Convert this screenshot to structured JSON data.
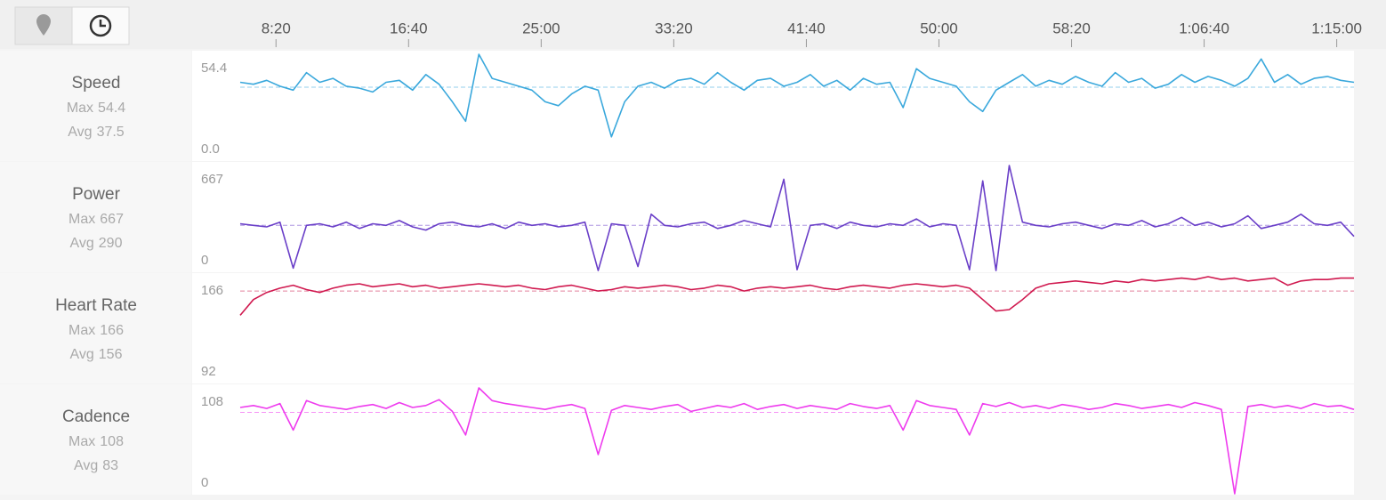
{
  "time_axis": {
    "x": [
      365,
      415,
      465,
      515,
      565,
      615,
      665,
      715,
      765,
      815,
      865,
      915,
      965,
      1015,
      1065,
      1115,
      1165,
      1215,
      1265,
      1315,
      1365,
      1415,
      1465,
      1515,
      1565,
      1615,
      1665,
      1715,
      1765,
      1815,
      1865,
      1915,
      1965,
      2015,
      2065,
      2115,
      2165,
      2215,
      2265,
      2315,
      2365,
      2415,
      2465,
      2515,
      2565,
      2615,
      2665,
      2715,
      2765,
      2815,
      2865,
      2915,
      2965,
      3015,
      3065,
      3115,
      3165,
      3215,
      3265,
      3315,
      3365,
      3415,
      3465,
      3515,
      3565,
      3615,
      3665,
      3715,
      3765,
      3815,
      3865,
      3915,
      3965,
      4015,
      4065,
      4115,
      4165,
      4215,
      4265,
      4315,
      4365,
      4415,
      4465,
      4515,
      4565
    ],
    "xlim": [
      365,
      4565
    ],
    "xticks": [
      {
        "value": 500,
        "label": "8:20"
      },
      {
        "value": 1000,
        "label": "16:40"
      },
      {
        "value": 1500,
        "label": "25:00"
      },
      {
        "value": 2000,
        "label": "33:20"
      },
      {
        "value": 2500,
        "label": "41:40"
      },
      {
        "value": 3000,
        "label": "50:00"
      },
      {
        "value": 3500,
        "label": "58:20"
      },
      {
        "value": 4000,
        "label": "1:06:40"
      },
      {
        "value": 4500,
        "label": "1:15:00"
      }
    ]
  },
  "chart_data": [
    {
      "type": "line",
      "title": "Speed",
      "color": "#3aa8dc",
      "ylim": [
        0,
        54.4
      ],
      "yticks": [
        {
          "value": 0,
          "label": "0.0"
        },
        54.4
      ],
      "stats": [
        {
          "label": "Max",
          "value": 54.4
        },
        {
          "label": "Avg",
          "value": 37.5
        }
      ],
      "values": [
        40,
        39,
        41,
        38,
        36,
        45,
        40,
        42,
        38,
        37,
        35,
        40,
        41,
        36,
        44,
        39,
        30,
        20,
        54.4,
        42,
        40,
        38,
        36,
        30,
        28,
        34,
        38,
        36,
        12,
        30,
        38,
        40,
        37,
        41,
        42,
        39,
        45,
        40,
        36,
        41,
        42,
        38,
        40,
        44,
        38,
        41,
        36,
        42,
        39,
        40,
        27,
        47,
        42,
        40,
        38,
        30,
        25,
        36,
        40,
        44,
        38,
        41,
        39,
        43,
        40,
        38,
        45,
        40,
        42,
        37,
        39,
        44,
        40,
        43,
        41,
        38,
        42,
        52,
        40,
        44,
        39,
        42,
        43,
        41,
        40
      ]
    },
    {
      "type": "line",
      "title": "Power",
      "color": "#6a3fc8",
      "ylim": [
        0,
        667
      ],
      "yticks": [
        0,
        667
      ],
      "stats": [
        {
          "label": "Max",
          "value": 667
        },
        {
          "label": "Avg",
          "value": 290
        }
      ],
      "values": [
        300,
        290,
        280,
        310,
        20,
        290,
        300,
        280,
        310,
        270,
        300,
        290,
        320,
        280,
        260,
        300,
        310,
        290,
        280,
        300,
        270,
        310,
        290,
        300,
        280,
        290,
        310,
        5,
        300,
        290,
        30,
        360,
        290,
        280,
        300,
        310,
        270,
        290,
        320,
        300,
        280,
        580,
        10,
        290,
        300,
        270,
        310,
        290,
        280,
        300,
        290,
        330,
        280,
        300,
        290,
        10,
        570,
        5,
        667,
        310,
        290,
        280,
        300,
        310,
        290,
        270,
        300,
        290,
        320,
        280,
        300,
        340,
        290,
        310,
        280,
        300,
        350,
        270,
        290,
        310,
        360,
        300,
        290,
        310,
        220
      ]
    },
    {
      "type": "line",
      "title": "Heart Rate",
      "color": "#d0194f",
      "ylim": [
        92,
        166
      ],
      "yticks": [
        92,
        166
      ],
      "stats": [
        {
          "label": "Max",
          "value": 166
        },
        {
          "label": "Avg",
          "value": 156
        }
      ],
      "values": [
        139,
        150,
        155,
        158,
        160,
        157,
        155,
        158,
        160,
        161,
        159,
        160,
        161,
        159,
        160,
        158,
        159,
        160,
        161,
        160,
        159,
        160,
        158,
        157,
        159,
        160,
        158,
        156,
        157,
        159,
        158,
        159,
        160,
        159,
        157,
        158,
        160,
        159,
        156,
        158,
        159,
        158,
        159,
        160,
        158,
        157,
        159,
        160,
        159,
        158,
        160,
        161,
        160,
        159,
        160,
        158,
        150,
        142,
        143,
        150,
        158,
        161,
        162,
        163,
        162,
        161,
        163,
        162,
        164,
        163,
        164,
        165,
        164,
        166,
        164,
        165,
        163,
        164,
        165,
        160,
        163,
        164,
        164,
        165,
        165
      ]
    },
    {
      "type": "line",
      "title": "Cadence",
      "color": "#ee3bee",
      "ylim": [
        0,
        108
      ],
      "yticks": [
        0,
        108
      ],
      "stats": [
        {
          "label": "Max",
          "value": 108
        },
        {
          "label": "Avg",
          "value": 83
        }
      ],
      "values": [
        88,
        90,
        87,
        92,
        65,
        95,
        90,
        88,
        86,
        89,
        91,
        87,
        93,
        88,
        90,
        96,
        84,
        60,
        108,
        95,
        92,
        90,
        88,
        86,
        89,
        91,
        87,
        40,
        85,
        90,
        88,
        86,
        89,
        91,
        84,
        87,
        90,
        88,
        92,
        86,
        89,
        91,
        87,
        90,
        88,
        86,
        92,
        89,
        87,
        90,
        65,
        95,
        90,
        88,
        86,
        60,
        92,
        89,
        93,
        88,
        90,
        87,
        91,
        89,
        86,
        88,
        92,
        90,
        87,
        89,
        91,
        88,
        93,
        90,
        86,
        0,
        89,
        91,
        88,
        90,
        87,
        92,
        89,
        90,
        86
      ]
    }
  ]
}
